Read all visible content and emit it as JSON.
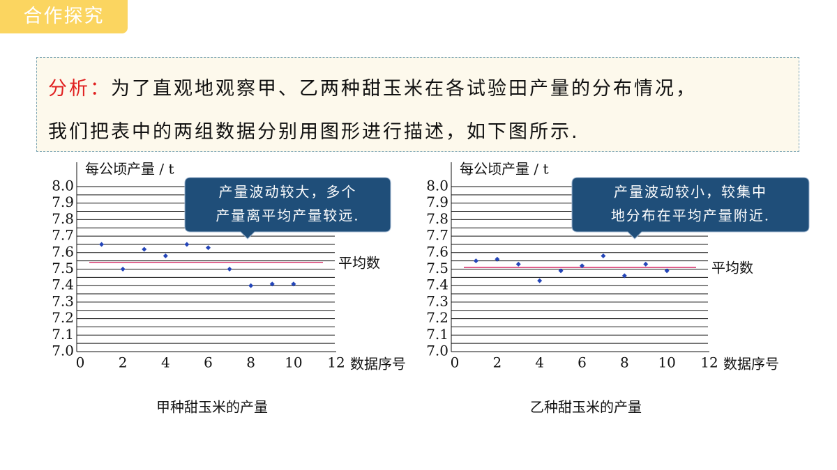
{
  "header": {
    "title": "合作探究"
  },
  "analysis": {
    "label": "分析：",
    "lines": [
      "为了直观地观察甲、乙两种甜玉米在各试验田产量的分布情况，",
      "我们把表中的两组数据分别用图形进行描述，如下图所示."
    ]
  },
  "chart_data": [
    {
      "type": "scatter",
      "title": "甲种甜玉米的产量",
      "y_label": "每公顷产量 / t",
      "x_label": "数据序号",
      "x": [
        1,
        2,
        3,
        4,
        5,
        6,
        7,
        8,
        9,
        10
      ],
      "values": [
        7.65,
        7.5,
        7.62,
        7.58,
        7.65,
        7.63,
        7.5,
        7.4,
        7.41,
        7.41
      ],
      "color": "#2445b8",
      "mean": 7.54,
      "mean_label": "平均数",
      "mean_color": "#d6336c",
      "annotation": [
        "产量波动较大，多个",
        "产量离平均产量较远."
      ],
      "xlim": [
        0,
        12
      ],
      "xticks": [
        0,
        2,
        4,
        6,
        8,
        10,
        12
      ],
      "ylim": [
        7.0,
        8.0
      ],
      "yticks": [
        {
          "value": 7.0,
          "label": "7.0"
        },
        7.1,
        7.2,
        7.3,
        7.4,
        7.5,
        7.6,
        7.7,
        7.8,
        7.9,
        {
          "value": 8.0,
          "label": "8.0"
        }
      ],
      "grid": true
    },
    {
      "type": "scatter",
      "title": "乙种甜玉米的产量",
      "y_label": "每公顷产量 / t",
      "x_label": "数据序号",
      "x": [
        1,
        2,
        3,
        4,
        5,
        6,
        7,
        8,
        9,
        10
      ],
      "values": [
        7.55,
        7.56,
        7.53,
        7.43,
        7.49,
        7.52,
        7.58,
        7.46,
        7.53,
        7.49
      ],
      "color": "#2445b8",
      "mean": 7.51,
      "mean_label": "平均数",
      "mean_color": "#d6336c",
      "annotation": [
        "产量波动较小，较集中",
        "地分布在平均产量附近."
      ],
      "xlim": [
        0,
        12
      ],
      "xticks": [
        0,
        2,
        4,
        6,
        8,
        10,
        12
      ],
      "ylim": [
        7.0,
        8.0
      ],
      "yticks": [
        {
          "value": 7.0,
          "label": "7.0"
        },
        7.1,
        7.2,
        7.3,
        7.4,
        7.5,
        7.6,
        7.7,
        7.8,
        7.9,
        {
          "value": 8.0,
          "label": "8.0"
        }
      ],
      "grid": true
    }
  ]
}
